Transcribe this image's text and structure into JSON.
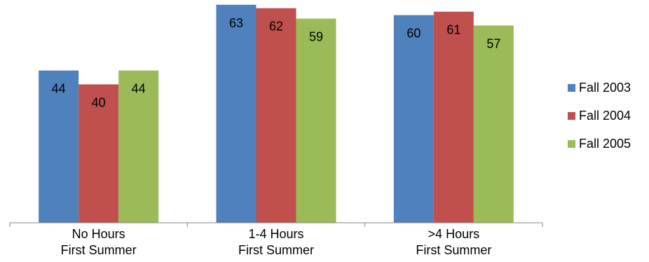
{
  "chart_data": {
    "type": "bar",
    "categories": [
      [
        "No Hours",
        "First Summer"
      ],
      [
        "1-4 Hours",
        "First Summer"
      ],
      [
        ">4 Hours",
        "First Summer"
      ]
    ],
    "series": [
      {
        "name": "Fall 2003",
        "color": "#4f81bd",
        "values": [
          44,
          63,
          60
        ]
      },
      {
        "name": "Fall 2004",
        "color": "#c0504d",
        "values": [
          40,
          62,
          61
        ]
      },
      {
        "name": "Fall 2005",
        "color": "#9bbb59",
        "values": [
          44,
          59,
          57
        ]
      }
    ],
    "title": "",
    "xlabel": "",
    "ylabel": "",
    "ylim": [
      0,
      64
    ],
    "grid": false,
    "data_labels": true,
    "legend_position": "right"
  }
}
